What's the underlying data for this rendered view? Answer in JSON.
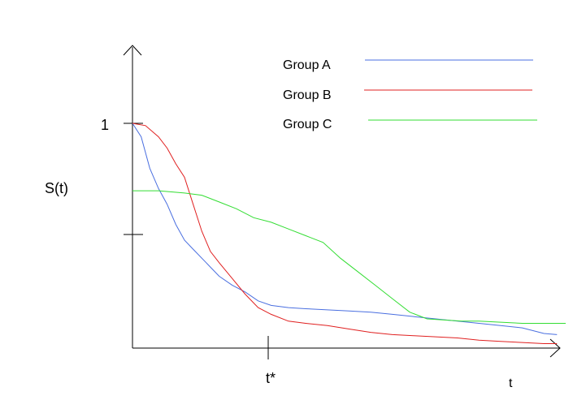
{
  "chart_data": {
    "type": "line",
    "title": "",
    "xlabel": "t",
    "ylabel": "S(t)",
    "x_marker_label": "t*",
    "y_tick_label": "1",
    "xlim": [
      0,
      1
    ],
    "ylim": [
      0,
      1.2
    ],
    "legend_placement": "top-center",
    "series": [
      {
        "name": "Group A",
        "color": "#4a6fe0",
        "x": [
          0,
          0.02,
          0.04,
          0.06,
          0.08,
          0.1,
          0.12,
          0.14,
          0.17,
          0.2,
          0.23,
          0.26,
          0.29,
          0.32,
          0.36,
          0.4,
          0.45,
          0.5,
          0.55,
          0.6,
          0.65,
          0.7,
          0.75,
          0.8,
          0.85,
          0.9,
          0.95,
          0.98
        ],
        "y": [
          1.0,
          0.94,
          0.8,
          0.71,
          0.64,
          0.55,
          0.48,
          0.44,
          0.38,
          0.32,
          0.28,
          0.25,
          0.21,
          0.19,
          0.18,
          0.175,
          0.17,
          0.165,
          0.16,
          0.15,
          0.14,
          0.13,
          0.12,
          0.11,
          0.1,
          0.09,
          0.065,
          0.06
        ]
      },
      {
        "name": "Group B",
        "color": "#e02020",
        "x": [
          0,
          0.03,
          0.06,
          0.08,
          0.1,
          0.12,
          0.14,
          0.16,
          0.18,
          0.2,
          0.23,
          0.26,
          0.29,
          0.32,
          0.36,
          0.4,
          0.45,
          0.5,
          0.55,
          0.6,
          0.65,
          0.7,
          0.75,
          0.8,
          0.85,
          0.9,
          0.95,
          0.98
        ],
        "y": [
          1.0,
          0.99,
          0.94,
          0.89,
          0.82,
          0.76,
          0.64,
          0.52,
          0.43,
          0.38,
          0.31,
          0.24,
          0.18,
          0.15,
          0.12,
          0.11,
          0.1,
          0.085,
          0.07,
          0.06,
          0.055,
          0.05,
          0.045,
          0.035,
          0.03,
          0.025,
          0.02,
          0.02
        ]
      },
      {
        "name": "Group C",
        "color": "#33dd33",
        "x": [
          0,
          0.06,
          0.12,
          0.16,
          0.2,
          0.24,
          0.28,
          0.32,
          0.36,
          0.4,
          0.44,
          0.48,
          0.52,
          0.56,
          0.6,
          0.64,
          0.68,
          0.72,
          0.76,
          0.8,
          0.85,
          0.9,
          0.95,
          1.0
        ],
        "y": [
          0.7,
          0.7,
          0.69,
          0.68,
          0.65,
          0.62,
          0.58,
          0.56,
          0.53,
          0.5,
          0.47,
          0.4,
          0.34,
          0.28,
          0.22,
          0.16,
          0.13,
          0.125,
          0.12,
          0.12,
          0.115,
          0.11,
          0.11,
          0.11
        ]
      }
    ]
  }
}
